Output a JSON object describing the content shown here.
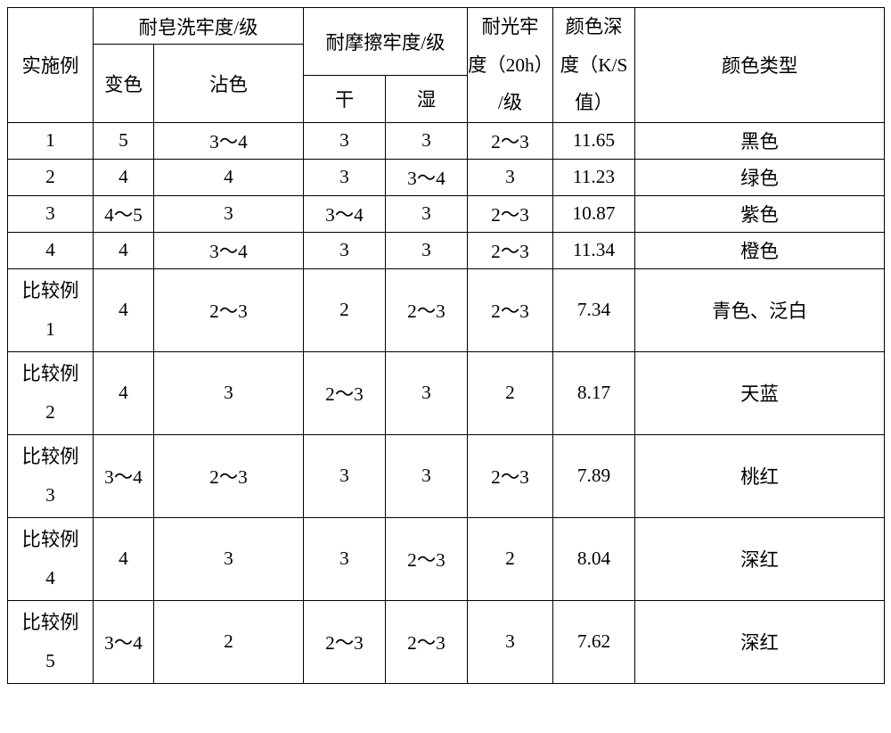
{
  "font_size_pt": 16,
  "text_color": "#000000",
  "border_color": "#000000",
  "background_color": "#ffffff",
  "header": {
    "col0": "实施例",
    "soap_group": "耐皂洗牢度/级",
    "soap_sub1": "变色",
    "soap_sub2": "沾色",
    "rub_group": "耐摩擦牢度/级",
    "rub_sub1": "干",
    "rub_sub2": "湿",
    "light_line1": "耐光牢",
    "light_line2": "度（20h）",
    "light_line3": "/级",
    "depth_line1": "颜色深",
    "depth_line2": "度（K/S",
    "depth_line3": "值）",
    "col7": "颜色类型"
  },
  "rows": [
    {
      "name": "1",
      "changese": "5",
      "zhanse": "3～4",
      "gan": "3",
      "shi": "3",
      "light": "2～3",
      "ks": "11.65",
      "type": "黑色"
    },
    {
      "name": "2",
      "changese": "4",
      "zhanse": "4",
      "gan": "3",
      "shi": "3～4",
      "light": "3",
      "ks": "11.23",
      "type": "绿色"
    },
    {
      "name": "3",
      "changese": "4～5",
      "zhanse": "3",
      "gan": "3～4",
      "shi": "3",
      "light": "2～3",
      "ks": "10.87",
      "type": "紫色"
    },
    {
      "name": "4",
      "changese": "4",
      "zhanse": "3～4",
      "gan": "3",
      "shi": "3",
      "light": "2～3",
      "ks": "11.34",
      "type": "橙色"
    }
  ],
  "bigrows": [
    {
      "l1": "比较例",
      "l2": "1",
      "changese": "4",
      "zhanse": "2～3",
      "gan": "2",
      "shi": "2～3",
      "light": "2～3",
      "ks": "7.34",
      "type": "青色、泛白"
    },
    {
      "l1": "比较例",
      "l2": "2",
      "changese": "4",
      "zhanse": "3",
      "gan": "2～3",
      "shi": "3",
      "light": "2",
      "ks": "8.17",
      "type": "天蓝"
    },
    {
      "l1": "比较例",
      "l2": "3",
      "changese": "3～4",
      "zhanse": "2～3",
      "gan": "3",
      "shi": "3",
      "light": "2～3",
      "ks": "7.89",
      "type": "桃红"
    },
    {
      "l1": "比较例",
      "l2": "4",
      "changese": "4",
      "zhanse": "3",
      "gan": "3",
      "shi": "2～3",
      "light": "2",
      "ks": "8.04",
      "type": "深红"
    },
    {
      "l1": "比较例",
      "l2": "5",
      "changese": "3～4",
      "zhanse": "2",
      "gan": "2～3",
      "shi": "2～3",
      "light": "3",
      "ks": "7.62",
      "type": "深红"
    }
  ]
}
